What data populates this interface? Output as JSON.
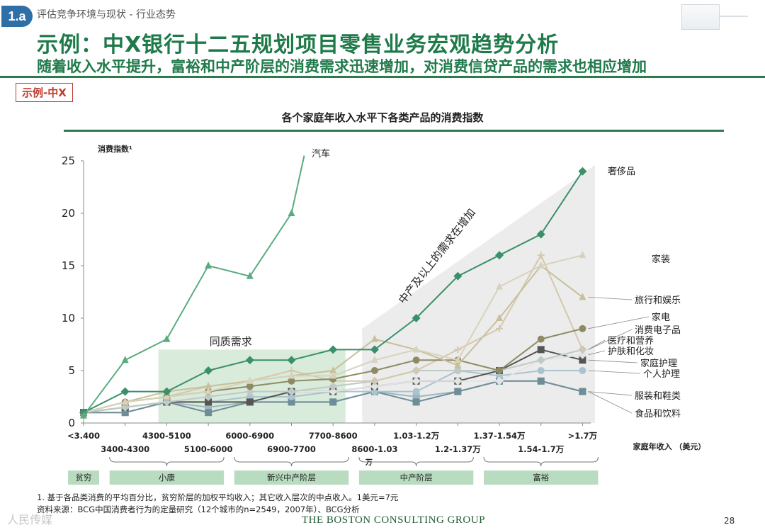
{
  "header": {
    "badge": "1.a",
    "breadcrumb": "评估竞争环境与现状 - 行业态势",
    "title": "示例：中X银行十二五规划项目零售业务宏观趋势分析",
    "subtitle": "随着收入水平提升，富裕和中产阶层的消费需求迅速增加，对消费信贷产品的需求也相应增加",
    "example_tag": "示例-中X"
  },
  "chart_data": {
    "type": "line",
    "title": "各个家庭年收入水平下各类产品的消费指数",
    "ylabel": "消费指数¹",
    "xlabel": "家庭年收入 （美元）",
    "ylim": [
      0,
      25
    ],
    "yticks": [
      0,
      5,
      10,
      15,
      20,
      25
    ],
    "categories": [
      "<3.400",
      "3400-4300",
      "4300-5100",
      "5100-6000",
      "6000-6900",
      "6900-7700",
      "7700-8600",
      "8600-1.03万",
      "1.03-1.2万",
      "1.2-1.37万",
      "1.37-1.54万",
      "1.54-1.7万",
      ">1.7万"
    ],
    "x_labels_top": [
      "<3.400",
      "4300-5100",
      "6000-6900",
      "7700-8600",
      "1.03-1.2万",
      "1.37-1.54万",
      ">1.7万"
    ],
    "x_labels_bottom": [
      "3400-4300",
      "5100-6000",
      "6900-7700",
      "8600-1.03",
      "1.2-1.37万",
      "1.54-1.7万"
    ],
    "x_label_wrap": "万",
    "income_groups": [
      {
        "label": "贫穷",
        "from": 0,
        "to": 0
      },
      {
        "label": "小康",
        "from": 1,
        "to": 3
      },
      {
        "label": "新兴中产阶层",
        "from": 4,
        "to": 6
      },
      {
        "label": "中产阶层",
        "from": 7,
        "to": 9
      },
      {
        "label": "富裕",
        "from": 10,
        "to": 12
      }
    ],
    "annotations": {
      "same_demand": "同质需求",
      "rising_demand": "中产及以上的需求在增加"
    },
    "series": [
      {
        "name": "汽车",
        "color": "#5aab7e",
        "marker": "triangle",
        "values": [
          0.7,
          6,
          8,
          15,
          14,
          20,
          null,
          null,
          null,
          null,
          null,
          null,
          null
        ],
        "end_value": 25.5
      },
      {
        "name": "奢侈品",
        "color": "#3a9068",
        "marker": "diamond",
        "values": [
          1,
          3,
          3,
          5,
          6,
          6,
          7,
          7,
          10,
          14,
          16,
          18,
          24
        ]
      },
      {
        "name": "家装",
        "color": "#d8d2bc",
        "marker": "triangle",
        "values": [
          1,
          2,
          2.5,
          3,
          4,
          4.5,
          4.5,
          6,
          7,
          6,
          13,
          15,
          16
        ]
      },
      {
        "name": "旅行和娱乐",
        "color": "#c7c09a",
        "marker": "triangle",
        "values": [
          1,
          2,
          3,
          3.5,
          4,
          4.5,
          5,
          8,
          7,
          5.5,
          10,
          15,
          12
        ]
      },
      {
        "name": "家电",
        "color": "#8e8a64",
        "marker": "circle",
        "values": [
          1,
          2,
          2.5,
          3,
          3.5,
          4,
          4.2,
          5,
          6,
          6,
          5,
          8,
          9
        ]
      },
      {
        "name": "消费电子品",
        "color": "#d4c8ae",
        "marker": "plus",
        "values": [
          1,
          2,
          2.5,
          3.5,
          4,
          5,
          4,
          4,
          5,
          7,
          9,
          16,
          7
        ]
      },
      {
        "name": "医疗和营养",
        "color": "#bfc9c5",
        "marker": "diamond",
        "values": [
          1,
          1.5,
          2,
          2.5,
          3,
          3,
          3.5,
          4,
          5,
          5,
          5,
          6,
          7
        ]
      },
      {
        "name": "护肤和化妆",
        "color": "#e2e4e4",
        "marker": "diamond",
        "values": [
          1,
          1.5,
          2,
          2.5,
          3,
          3,
          3,
          3.5,
          4,
          4,
          4,
          6,
          6.5
        ]
      },
      {
        "name": "家庭护理",
        "color": "#555555",
        "marker": "square",
        "values": [
          1,
          1.5,
          2,
          2,
          2,
          3,
          3,
          3.5,
          4,
          4,
          5,
          7,
          6
        ]
      },
      {
        "name": "个人护理",
        "color": "#a9c3cf",
        "marker": "circle",
        "values": [
          1,
          1.5,
          2,
          2,
          2.5,
          2.5,
          3,
          3,
          3,
          5,
          4.5,
          5,
          5
        ]
      },
      {
        "name": "服装和鞋类",
        "color": "#6f8d98",
        "marker": "square",
        "values": [
          1,
          1,
          2,
          1,
          2,
          2,
          2,
          3,
          2,
          3,
          4,
          4,
          3
        ]
      },
      {
        "name": "食品和饮料",
        "color": "#9fb6c0",
        "marker": "square",
        "values": [
          1,
          1,
          2,
          1.5,
          2,
          2,
          2,
          3,
          2.5,
          3,
          4,
          4,
          3
        ]
      }
    ]
  },
  "footer": {
    "footnote": "1. 基于各品类消费的平均百分比，贫穷阶层的加权平均收入；其它收入层次的中点收入。1美元=7元",
    "source": "资料来源：BCG中国消费者行为的定量研究（12个城市的n=2549，2007年）、BCG分析",
    "brand": "THE BOSTON CONSULTING GROUP",
    "page": "28",
    "watermark": "人民传媒"
  }
}
